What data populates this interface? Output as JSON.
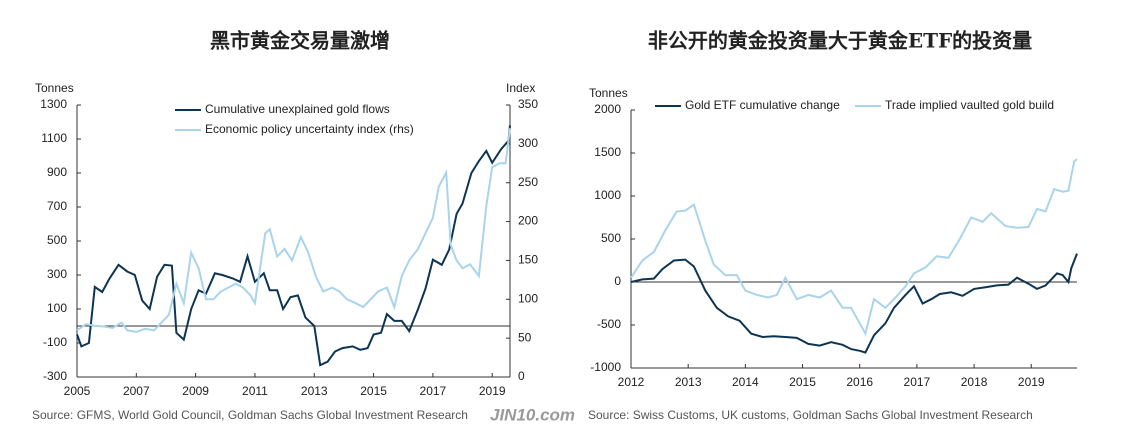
{
  "chart_data": [
    {
      "type": "line",
      "title": "黑市黄金交易量激增",
      "y_label": "Tonnes",
      "y2_label": "Index",
      "source": "Source: GFMS, World Gold Council, Goldman Sachs Global Investment Research",
      "xlim": [
        2005,
        2019.6
      ],
      "xticks": [
        2005,
        2007,
        2009,
        2011,
        2013,
        2015,
        2017,
        2019
      ],
      "ylim": [
        -300,
        1300
      ],
      "yticks": [
        -300,
        -100,
        100,
        300,
        500,
        700,
        900,
        1100,
        1300
      ],
      "y2lim": [
        0,
        350
      ],
      "y2ticks": [
        0,
        50,
        100,
        150,
        200,
        250,
        300,
        350
      ],
      "legend": "upper left",
      "series": [
        {
          "name": "Cumulative unexplained gold flows",
          "color": "#0d3553",
          "x": [
            2005.0,
            2005.15,
            2005.4,
            2005.6,
            2005.85,
            2006.1,
            2006.4,
            2006.7,
            2006.95,
            2007.2,
            2007.45,
            2007.7,
            2007.95,
            2008.2,
            2008.35,
            2008.6,
            2008.85,
            2009.1,
            2009.35,
            2009.65,
            2009.9,
            2010.25,
            2010.5,
            2010.75,
            2011.0,
            2011.3,
            2011.5,
            2011.75,
            2011.95,
            2012.2,
            2012.45,
            2012.7,
            2013.0,
            2013.2,
            2013.45,
            2013.7,
            2013.95,
            2014.3,
            2014.55,
            2014.8,
            2015.0,
            2015.25,
            2015.45,
            2015.7,
            2015.95,
            2016.2,
            2016.5,
            2016.75,
            2017.0,
            2017.3,
            2017.55,
            2017.8,
            2018.0,
            2018.3,
            2018.55,
            2018.8,
            2019.0,
            2019.3,
            2019.55,
            2019.6
          ],
          "values": [
            -50,
            -120,
            -100,
            230,
            200,
            280,
            360,
            320,
            300,
            150,
            100,
            290,
            360,
            355,
            -40,
            -80,
            100,
            210,
            190,
            310,
            300,
            280,
            260,
            410,
            260,
            310,
            210,
            210,
            100,
            170,
            180,
            50,
            0,
            -230,
            -210,
            -150,
            -130,
            -120,
            -140,
            -130,
            -50,
            -40,
            70,
            30,
            30,
            -30,
            100,
            220,
            390,
            360,
            450,
            660,
            720,
            900,
            970,
            1030,
            960,
            1040,
            1090,
            1180
          ]
        },
        {
          "name": "Economic policy uncertainty index (rhs)",
          "color": "#a9d4ec",
          "axis": "y2",
          "x": [
            2005.0,
            2005.3,
            2005.6,
            2005.9,
            2006.2,
            2006.5,
            2006.7,
            2007.0,
            2007.3,
            2007.6,
            2007.85,
            2008.1,
            2008.35,
            2008.6,
            2008.85,
            2009.1,
            2009.35,
            2009.6,
            2009.85,
            2010.1,
            2010.35,
            2010.6,
            2010.85,
            2011.0,
            2011.35,
            2011.5,
            2011.75,
            2012.0,
            2012.25,
            2012.55,
            2012.8,
            2013.05,
            2013.3,
            2013.6,
            2013.85,
            2014.1,
            2014.4,
            2014.65,
            2014.9,
            2015.15,
            2015.45,
            2015.7,
            2015.95,
            2016.2,
            2016.5,
            2016.75,
            2017.0,
            2017.2,
            2017.45,
            2017.6,
            2017.8,
            2018.0,
            2018.25,
            2018.55,
            2018.8,
            2019.0,
            2019.25,
            2019.45,
            2019.6
          ],
          "values": [
            60,
            68,
            66,
            65,
            63,
            70,
            60,
            58,
            62,
            60,
            70,
            80,
            120,
            95,
            160,
            140,
            100,
            100,
            110,
            115,
            120,
            115,
            105,
            95,
            185,
            190,
            155,
            165,
            150,
            180,
            160,
            130,
            110,
            115,
            110,
            100,
            95,
            90,
            100,
            110,
            115,
            90,
            130,
            150,
            165,
            185,
            205,
            245,
            263,
            170,
            150,
            140,
            145,
            130,
            220,
            270,
            275,
            275,
            320
          ]
        }
      ]
    },
    {
      "type": "line",
      "title": "非公开的黄金投资量大于黄金ETF的投资量",
      "y_label": "Tonnes",
      "source": "Source: Swiss Customs, UK customs, Goldman Sachs Global Investment Research",
      "xlim": [
        2012,
        2019.8
      ],
      "xticks": [
        2012,
        2013,
        2014,
        2015,
        2016,
        2017,
        2018,
        2019
      ],
      "ylim": [
        -1000,
        2000
      ],
      "yticks": [
        -1000,
        -500,
        0,
        500,
        1000,
        1500,
        2000
      ],
      "legend": "top",
      "series": [
        {
          "name": "Gold ETF cumulative change",
          "color": "#0d3553",
          "x": [
            2012.0,
            2012.2,
            2012.4,
            2012.55,
            2012.75,
            2012.95,
            2013.1,
            2013.3,
            2013.5,
            2013.7,
            2013.9,
            2014.1,
            2014.3,
            2014.5,
            2014.7,
            2014.9,
            2015.1,
            2015.3,
            2015.5,
            2015.7,
            2015.85,
            2016.0,
            2016.1,
            2016.25,
            2016.45,
            2016.6,
            2016.8,
            2016.95,
            2017.1,
            2017.25,
            2017.4,
            2017.6,
            2017.8,
            2018.0,
            2018.2,
            2018.4,
            2018.6,
            2018.75,
            2018.95,
            2019.1,
            2019.25,
            2019.45,
            2019.55,
            2019.65,
            2019.7,
            2019.8
          ],
          "values": [
            0,
            30,
            40,
            150,
            250,
            260,
            180,
            -100,
            -300,
            -400,
            -450,
            -600,
            -640,
            -630,
            -640,
            -650,
            -720,
            -740,
            -700,
            -730,
            -780,
            -800,
            -820,
            -620,
            -480,
            -300,
            -150,
            -50,
            -250,
            -200,
            -140,
            -120,
            -160,
            -80,
            -60,
            -40,
            -30,
            50,
            -20,
            -80,
            -40,
            100,
            80,
            0,
            160,
            330
          ]
        },
        {
          "name": "Trade implied vaulted gold build",
          "color": "#a9d4ec",
          "x": [
            2012.0,
            2012.2,
            2012.4,
            2012.6,
            2012.8,
            2012.95,
            2013.1,
            2013.3,
            2013.45,
            2013.65,
            2013.85,
            2014.0,
            2014.2,
            2014.4,
            2014.55,
            2014.7,
            2014.9,
            2015.1,
            2015.3,
            2015.5,
            2015.7,
            2015.85,
            2016.1,
            2016.25,
            2016.45,
            2016.6,
            2016.8,
            2016.95,
            2017.15,
            2017.35,
            2017.55,
            2017.75,
            2017.95,
            2018.15,
            2018.3,
            2018.55,
            2018.75,
            2018.95,
            2019.1,
            2019.25,
            2019.4,
            2019.55,
            2019.65,
            2019.75,
            2019.8
          ],
          "values": [
            50,
            250,
            350,
            600,
            820,
            830,
            900,
            480,
            200,
            80,
            80,
            -100,
            -150,
            -180,
            -150,
            50,
            -200,
            -150,
            -180,
            -100,
            -300,
            -300,
            -600,
            -200,
            -300,
            -200,
            -50,
            100,
            170,
            300,
            280,
            500,
            750,
            700,
            800,
            650,
            630,
            640,
            850,
            820,
            1080,
            1050,
            1060,
            1400,
            1430
          ]
        }
      ]
    }
  ],
  "watermark": "JIN10.com"
}
